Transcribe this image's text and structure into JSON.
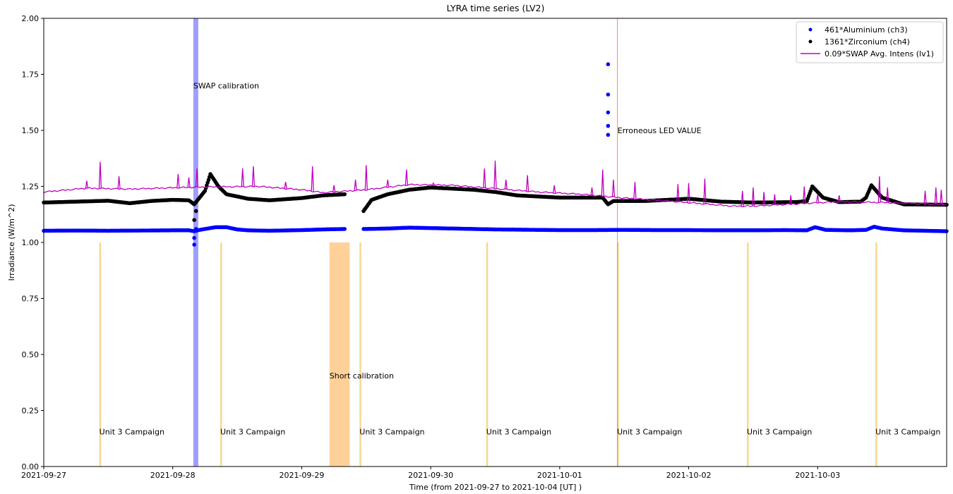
{
  "chart_data": {
    "type": "line",
    "title": "LYRA time series (LV2)",
    "xlabel": "Time (from 2021-09-27 to 2021-10-04 [UT] )",
    "ylabel": "Irradiance (W/m^2)",
    "x_range": [
      "2021-09-27",
      "2021-10-04"
    ],
    "ylim": [
      0.0,
      2.0
    ],
    "x_ticks": [
      "2021-09-27",
      "2021-09-28",
      "2021-09-29",
      "2021-09-30",
      "2021-10-01",
      "2021-10-02",
      "2021-10-03"
    ],
    "y_ticks": [
      "0.00",
      "0.25",
      "0.50",
      "0.75",
      "1.00",
      "1.25",
      "1.50",
      "1.75",
      "2.00"
    ],
    "legend_position": "top-right",
    "grid": false,
    "series": [
      {
        "name": "461*Aluminium (ch3)",
        "style": "markers",
        "color": "#0000ff",
        "points": [
          [
            "2021-09-27T00:00",
            1.052
          ],
          [
            "2021-09-27T06:00",
            1.053
          ],
          [
            "2021-09-27T12:00",
            1.052
          ],
          [
            "2021-09-27T18:00",
            1.053
          ],
          [
            "2021-09-28T00:00",
            1.054
          ],
          [
            "2021-09-28T03:00",
            1.054
          ],
          [
            "2021-09-28T04:00",
            1.05
          ],
          [
            "2021-09-28T05:00",
            1.056
          ],
          [
            "2021-09-28T08:00",
            1.068
          ],
          [
            "2021-09-28T10:00",
            1.068
          ],
          [
            "2021-09-28T12:00",
            1.058
          ],
          [
            "2021-09-28T14:00",
            1.054
          ],
          [
            "2021-09-28T18:00",
            1.052
          ],
          [
            "2021-09-29T00:00",
            1.055
          ],
          [
            "2021-09-29T04:00",
            1.058
          ],
          [
            "2021-09-29T08:00",
            1.06
          ],
          [
            "2021-09-29T12:00",
            1.06
          ],
          [
            "2021-09-29T16:00",
            1.062
          ],
          [
            "2021-09-29T20:00",
            1.066
          ],
          [
            "2021-09-30T00:00",
            1.064
          ],
          [
            "2021-09-30T04:00",
            1.062
          ],
          [
            "2021-09-30T08:00",
            1.06
          ],
          [
            "2021-09-30T12:00",
            1.058
          ],
          [
            "2021-09-30T16:00",
            1.057
          ],
          [
            "2021-09-30T20:00",
            1.056
          ],
          [
            "2021-10-01T00:00",
            1.055
          ],
          [
            "2021-10-01T06:00",
            1.055
          ],
          [
            "2021-10-01T12:00",
            1.056
          ],
          [
            "2021-10-01T18:00",
            1.055
          ],
          [
            "2021-10-02T00:00",
            1.055
          ],
          [
            "2021-10-02T06:00",
            1.054
          ],
          [
            "2021-10-02T12:00",
            1.054
          ],
          [
            "2021-10-02T18:00",
            1.055
          ],
          [
            "2021-10-02T22:00",
            1.054
          ],
          [
            "2021-10-02T23:30",
            1.068
          ],
          [
            "2021-10-03T01:30",
            1.056
          ],
          [
            "2021-10-03T06:00",
            1.054
          ],
          [
            "2021-10-03T09:00",
            1.056
          ],
          [
            "2021-10-03T10:30",
            1.07
          ],
          [
            "2021-10-03T12:00",
            1.062
          ],
          [
            "2021-10-03T16:00",
            1.054
          ],
          [
            "2021-10-03T20:00",
            1.052
          ],
          [
            "2021-10-04T00:00",
            1.05
          ]
        ],
        "gaps": [
          [
            "2021-09-29T08:00",
            "2021-09-29T11:30"
          ]
        ],
        "outliers": [
          [
            "2021-09-28T04:00",
            0.99
          ],
          [
            "2021-09-28T04:00",
            1.02
          ],
          [
            "2021-09-28T04:20",
            1.06
          ],
          [
            "2021-10-01T09:00",
            1.795
          ],
          [
            "2021-10-01T09:00",
            1.66
          ],
          [
            "2021-10-01T09:00",
            1.58
          ],
          [
            "2021-10-01T09:00",
            1.52
          ],
          [
            "2021-10-01T09:00",
            1.48
          ]
        ]
      },
      {
        "name": "1361*Zirconium (ch4)",
        "style": "markers",
        "color": "#000000",
        "points": [
          [
            "2021-09-27T00:00",
            1.178
          ],
          [
            "2021-09-27T06:00",
            1.182
          ],
          [
            "2021-09-27T12:00",
            1.186
          ],
          [
            "2021-09-27T16:00",
            1.175
          ],
          [
            "2021-09-27T20:00",
            1.185
          ],
          [
            "2021-09-28T00:00",
            1.19
          ],
          [
            "2021-09-28T03:00",
            1.188
          ],
          [
            "2021-09-28T04:00",
            1.17
          ],
          [
            "2021-09-28T06:00",
            1.23
          ],
          [
            "2021-09-28T07:00",
            1.305
          ],
          [
            "2021-09-28T08:30",
            1.25
          ],
          [
            "2021-09-28T10:00",
            1.215
          ],
          [
            "2021-09-28T14:00",
            1.195
          ],
          [
            "2021-09-28T18:00",
            1.188
          ],
          [
            "2021-09-29T00:00",
            1.198
          ],
          [
            "2021-09-29T04:00",
            1.21
          ],
          [
            "2021-09-29T08:00",
            1.215
          ],
          [
            "2021-09-29T11:30",
            1.14
          ],
          [
            "2021-09-29T13:00",
            1.19
          ],
          [
            "2021-09-29T16:00",
            1.215
          ],
          [
            "2021-09-29T20:00",
            1.235
          ],
          [
            "2021-09-30T00:00",
            1.245
          ],
          [
            "2021-09-30T04:00",
            1.24
          ],
          [
            "2021-09-30T08:00",
            1.235
          ],
          [
            "2021-09-30T12:00",
            1.225
          ],
          [
            "2021-09-30T16:00",
            1.21
          ],
          [
            "2021-09-30T20:00",
            1.205
          ],
          [
            "2021-10-01T00:00",
            1.2
          ],
          [
            "2021-10-01T08:00",
            1.2
          ],
          [
            "2021-10-01T09:00",
            1.17
          ],
          [
            "2021-10-01T10:00",
            1.185
          ],
          [
            "2021-10-01T16:00",
            1.185
          ],
          [
            "2021-10-02T00:00",
            1.195
          ],
          [
            "2021-10-02T06:00",
            1.182
          ],
          [
            "2021-10-02T12:00",
            1.178
          ],
          [
            "2021-10-02T20:00",
            1.18
          ],
          [
            "2021-10-02T22:00",
            1.185
          ],
          [
            "2021-10-02T23:00",
            1.25
          ],
          [
            "2021-10-03T01:00",
            1.2
          ],
          [
            "2021-10-03T04:00",
            1.18
          ],
          [
            "2021-10-03T08:00",
            1.182
          ],
          [
            "2021-10-03T09:00",
            1.2
          ],
          [
            "2021-10-03T10:00",
            1.255
          ],
          [
            "2021-10-03T12:00",
            1.2
          ],
          [
            "2021-10-03T16:00",
            1.17
          ],
          [
            "2021-10-04T00:00",
            1.168
          ]
        ],
        "gaps": [
          [
            "2021-09-29T08:00",
            "2021-09-29T11:30"
          ]
        ],
        "outliers": [
          [
            "2021-09-28T04:00",
            1.1
          ],
          [
            "2021-09-28T04:20",
            1.14
          ]
        ]
      },
      {
        "name": "0.09*SWAP Avg. Intens (lv1)",
        "style": "line",
        "color": "#bf00bf",
        "points": [
          [
            "2021-09-27T00:00",
            1.225
          ],
          [
            "2021-09-27T08:00",
            1.242
          ],
          [
            "2021-09-27T16:00",
            1.238
          ],
          [
            "2021-09-28T00:00",
            1.244
          ],
          [
            "2021-09-28T08:00",
            1.248
          ],
          [
            "2021-09-28T16:00",
            1.25
          ],
          [
            "2021-09-29T00:00",
            1.235
          ],
          [
            "2021-09-29T04:00",
            1.222
          ],
          [
            "2021-09-29T12:00",
            1.235
          ],
          [
            "2021-09-29T20:00",
            1.258
          ],
          [
            "2021-09-30T04:00",
            1.255
          ],
          [
            "2021-09-30T12:00",
            1.24
          ],
          [
            "2021-09-30T20:00",
            1.225
          ],
          [
            "2021-10-01T04:00",
            1.215
          ],
          [
            "2021-10-01T12:00",
            1.198
          ],
          [
            "2021-10-01T20:00",
            1.185
          ],
          [
            "2021-10-02T04:00",
            1.17
          ],
          [
            "2021-10-02T08:00",
            1.162
          ],
          [
            "2021-10-02T12:00",
            1.162
          ],
          [
            "2021-10-02T20:00",
            1.172
          ],
          [
            "2021-10-03T04:00",
            1.182
          ],
          [
            "2021-10-03T12:00",
            1.178
          ],
          [
            "2021-10-03T20:00",
            1.172
          ],
          [
            "2021-10-04T00:00",
            1.17
          ]
        ],
        "spikes": [
          [
            "2021-09-27T10:30",
            1.36
          ],
          [
            "2021-09-27T14:00",
            1.295
          ],
          [
            "2021-09-27T08:00",
            1.275
          ],
          [
            "2021-09-28T01:00",
            1.305
          ],
          [
            "2021-09-28T03:00",
            1.29
          ],
          [
            "2021-09-28T04:30",
            1.33
          ],
          [
            "2021-09-28T13:00",
            1.33
          ],
          [
            "2021-09-28T15:00",
            1.34
          ],
          [
            "2021-09-28T21:00",
            1.27
          ],
          [
            "2021-09-29T02:00",
            1.34
          ],
          [
            "2021-09-29T06:00",
            1.255
          ],
          [
            "2021-09-29T10:00",
            1.28
          ],
          [
            "2021-09-29T12:00",
            1.345
          ],
          [
            "2021-09-29T16:00",
            1.28
          ],
          [
            "2021-09-29T19:30",
            1.325
          ],
          [
            "2021-09-30T00:30",
            1.265
          ],
          [
            "2021-09-30T10:00",
            1.33
          ],
          [
            "2021-09-30T12:00",
            1.365
          ],
          [
            "2021-09-30T14:00",
            1.28
          ],
          [
            "2021-09-30T18:00",
            1.3
          ],
          [
            "2021-09-30T23:00",
            1.255
          ],
          [
            "2021-10-01T06:00",
            1.245
          ],
          [
            "2021-10-01T08:00",
            1.325
          ],
          [
            "2021-10-01T10:00",
            1.28
          ],
          [
            "2021-10-01T14:00",
            1.27
          ],
          [
            "2021-10-01T22:00",
            1.26
          ],
          [
            "2021-10-02T00:00",
            1.265
          ],
          [
            "2021-10-02T03:00",
            1.285
          ],
          [
            "2021-10-02T10:00",
            1.23
          ],
          [
            "2021-10-02T12:00",
            1.245
          ],
          [
            "2021-10-02T14:00",
            1.225
          ],
          [
            "2021-10-02T16:00",
            1.215
          ],
          [
            "2021-10-02T19:00",
            1.21
          ],
          [
            "2021-10-02T21:30",
            1.25
          ],
          [
            "2021-10-03T04:00",
            1.21
          ],
          [
            "2021-10-03T11:30",
            1.295
          ],
          [
            "2021-10-03T13:00",
            1.245
          ],
          [
            "2021-10-03T22:00",
            1.245
          ],
          [
            "2021-10-03T23:00",
            1.235
          ],
          [
            "2021-10-03T20:00",
            1.23
          ],
          [
            "2021-10-03T00:00",
            1.215
          ]
        ]
      }
    ],
    "shaded_regions": [
      {
        "start": "2021-09-27T10:20",
        "end": "2021-09-27T10:40",
        "ymin": 0.0,
        "ymax": 1.0,
        "color": "#f5c664",
        "alpha": 0.7,
        "label": "Unit 3 Campaign"
      },
      {
        "start": "2021-09-28T03:50",
        "end": "2021-09-28T04:45",
        "ymin": 0.0,
        "ymax": 2.0,
        "color": "#0000ff",
        "alpha": 0.38,
        "label": "SWAP calibration"
      },
      {
        "start": "2021-09-28T08:50",
        "end": "2021-09-28T09:10",
        "ymin": 0.0,
        "ymax": 1.0,
        "color": "#f5c664",
        "alpha": 0.7,
        "label": "Unit 3 Campaign"
      },
      {
        "start": "2021-09-29T05:10",
        "end": "2021-09-29T08:55",
        "ymin": 0.0,
        "ymax": 1.0,
        "color": "#ffbd6e",
        "alpha": 0.7,
        "label": "Short calibration"
      },
      {
        "start": "2021-09-29T10:45",
        "end": "2021-09-29T11:05",
        "ymin": 0.0,
        "ymax": 1.0,
        "color": "#f5c664",
        "alpha": 0.7,
        "label": "Unit 3 Campaign"
      },
      {
        "start": "2021-09-30T10:20",
        "end": "2021-09-30T10:40",
        "ymin": 0.0,
        "ymax": 1.0,
        "color": "#f5c664",
        "alpha": 0.7,
        "label": "Unit 3 Campaign"
      },
      {
        "start": "2021-10-01T10:40",
        "end": "2021-10-01T11:00",
        "ymin": 0.0,
        "ymax": 1.0,
        "color": "#f5c664",
        "alpha": 0.7,
        "label": "Unit 3 Campaign"
      },
      {
        "start": "2021-10-02T10:50",
        "end": "2021-10-02T11:10",
        "ymin": 0.0,
        "ymax": 1.0,
        "color": "#f5c664",
        "alpha": 0.7,
        "label": "Unit 3 Campaign"
      },
      {
        "start": "2021-10-03T10:45",
        "end": "2021-10-03T11:05",
        "ymin": 0.0,
        "ymax": 1.0,
        "color": "#f5c664",
        "alpha": 0.7,
        "label": "Unit 3 Campaign"
      }
    ],
    "vertical_lines": [
      {
        "at": "2021-10-01T10:45",
        "color": "#ff6060",
        "label": "Erroneous LED VALUE",
        "label_y": 1.5
      }
    ],
    "annotation_label_y": {
      "Unit 3 Campaign": 0.155,
      "SWAP calibration": 1.7,
      "Short calibration": 0.405
    }
  }
}
